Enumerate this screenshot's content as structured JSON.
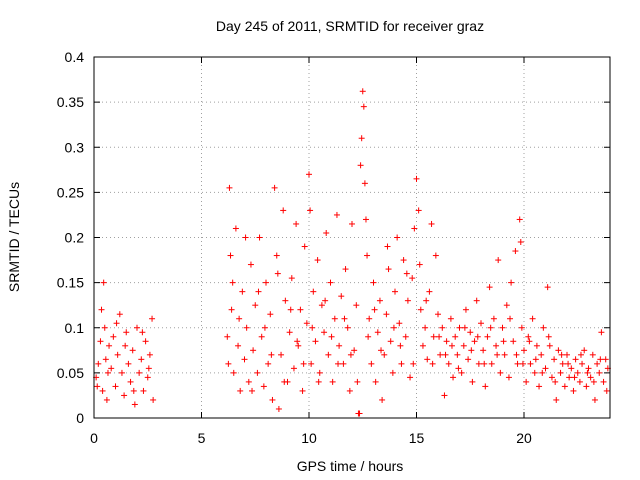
{
  "chart_data": {
    "type": "scatter",
    "title": "Day 245 of 2011, SRMTID for receiver graz",
    "xlabel": "GPS time / hours",
    "ylabel": "SRMTID / TECUs",
    "xlim": [
      0,
      24
    ],
    "ylim": [
      0,
      0.4
    ],
    "xticks": [
      0,
      5,
      10,
      15,
      20
    ],
    "xtick_labels": [
      "0",
      "5",
      "10",
      "15",
      "20"
    ],
    "yticks": [
      0,
      0.05,
      0.1,
      0.15,
      0.2,
      0.25,
      0.3,
      0.35,
      0.4
    ],
    "ytick_labels": [
      "0",
      "0.05",
      "0.1",
      "0.15",
      "0.2",
      "0.25",
      "0.3",
      "0.35",
      "0.4"
    ],
    "grid": true,
    "marker": "+",
    "color": "#ff0000",
    "series": [
      {
        "name": "SRMTID",
        "points": [
          [
            0.1,
            0.045
          ],
          [
            0.2,
            0.06
          ],
          [
            0.3,
            0.085
          ],
          [
            0.4,
            0.03
          ],
          [
            0.45,
            0.15
          ],
          [
            0.5,
            0.1
          ],
          [
            0.55,
            0.065
          ],
          [
            0.6,
            0.02
          ],
          [
            0.7,
            0.08
          ],
          [
            0.8,
            0.055
          ],
          [
            0.9,
            0.09
          ],
          [
            1.0,
            0.035
          ],
          [
            1.1,
            0.07
          ],
          [
            1.2,
            0.115
          ],
          [
            1.3,
            0.05
          ],
          [
            1.4,
            0.025
          ],
          [
            1.5,
            0.095
          ],
          [
            1.6,
            0.06
          ],
          [
            1.7,
            0.04
          ],
          [
            1.8,
            0.075
          ],
          [
            1.9,
            0.015
          ],
          [
            2.0,
            0.1
          ],
          [
            2.1,
            0.05
          ],
          [
            2.2,
            0.065
          ],
          [
            2.3,
            0.03
          ],
          [
            2.4,
            0.085
          ],
          [
            2.5,
            0.045
          ],
          [
            2.6,
            0.07
          ],
          [
            2.7,
            0.11
          ],
          [
            2.75,
            0.02
          ],
          [
            0.15,
            0.035
          ],
          [
            0.35,
            0.12
          ],
          [
            0.65,
            0.05
          ],
          [
            1.05,
            0.105
          ],
          [
            1.45,
            0.08
          ],
          [
            1.85,
            0.03
          ],
          [
            2.25,
            0.095
          ],
          [
            2.55,
            0.055
          ],
          [
            6.2,
            0.09
          ],
          [
            6.3,
            0.255
          ],
          [
            6.35,
            0.18
          ],
          [
            6.4,
            0.12
          ],
          [
            6.5,
            0.05
          ],
          [
            6.6,
            0.21
          ],
          [
            6.7,
            0.08
          ],
          [
            6.8,
            0.03
          ],
          [
            6.9,
            0.14
          ],
          [
            7.0,
            0.065
          ],
          [
            7.1,
            0.1
          ],
          [
            7.2,
            0.04
          ],
          [
            7.3,
            0.17
          ],
          [
            7.4,
            0.075
          ],
          [
            7.5,
            0.125
          ],
          [
            7.6,
            0.05
          ],
          [
            7.7,
            0.2
          ],
          [
            7.8,
            0.09
          ],
          [
            7.9,
            0.035
          ],
          [
            8.0,
            0.15
          ],
          [
            8.1,
            0.06
          ],
          [
            8.2,
            0.115
          ],
          [
            8.3,
            0.02
          ],
          [
            8.4,
            0.255
          ],
          [
            8.5,
            0.18
          ],
          [
            8.6,
            0.01
          ],
          [
            8.7,
            0.07
          ],
          [
            8.8,
            0.23
          ],
          [
            8.9,
            0.13
          ],
          [
            9.0,
            0.04
          ],
          [
            9.1,
            0.095
          ],
          [
            9.2,
            0.155
          ],
          [
            9.3,
            0.055
          ],
          [
            9.4,
            0.215
          ],
          [
            9.5,
            0.08
          ],
          [
            9.6,
            0.12
          ],
          [
            9.7,
            0.03
          ],
          [
            9.8,
            0.19
          ],
          [
            9.9,
            0.105
          ],
          [
            10.0,
            0.27
          ],
          [
            10.05,
            0.23
          ],
          [
            10.1,
            0.06
          ],
          [
            10.2,
            0.14
          ],
          [
            10.3,
            0.085
          ],
          [
            10.4,
            0.175
          ],
          [
            10.5,
            0.05
          ],
          [
            10.6,
            0.125
          ],
          [
            10.7,
            0.095
          ],
          [
            10.8,
            0.205
          ],
          [
            10.9,
            0.07
          ],
          [
            11.0,
            0.15
          ],
          [
            11.1,
            0.04
          ],
          [
            11.2,
            0.11
          ],
          [
            11.3,
            0.225
          ],
          [
            11.4,
            0.08
          ],
          [
            11.5,
            0.135
          ],
          [
            11.6,
            0.06
          ],
          [
            11.7,
            0.165
          ],
          [
            11.8,
            0.1
          ],
          [
            11.9,
            0.03
          ],
          [
            12.0,
            0.215
          ],
          [
            12.1,
            0.075
          ],
          [
            12.2,
            0.125
          ],
          [
            12.3,
            0.005
          ],
          [
            12.4,
            0.28
          ],
          [
            12.45,
            0.31
          ],
          [
            12.5,
            0.362
          ],
          [
            12.55,
            0.345
          ],
          [
            12.6,
            0.26
          ],
          [
            12.7,
            0.18
          ],
          [
            12.8,
            0.11
          ],
          [
            12.9,
            0.06
          ],
          [
            13.0,
            0.15
          ],
          [
            13.1,
            0.04
          ],
          [
            13.2,
            0.095
          ],
          [
            13.3,
            0.13
          ],
          [
            13.4,
            0.02
          ],
          [
            13.5,
            0.07
          ],
          [
            13.6,
            0.115
          ],
          [
            13.7,
            0.165
          ],
          [
            13.8,
            0.085
          ],
          [
            13.9,
            0.05
          ],
          [
            14.0,
            0.14
          ],
          [
            14.1,
            0.2
          ],
          [
            14.2,
            0.105
          ],
          [
            14.3,
            0.06
          ],
          [
            14.4,
            0.175
          ],
          [
            14.5,
            0.09
          ],
          [
            14.6,
            0.13
          ],
          [
            14.7,
            0.045
          ],
          [
            14.8,
            0.155
          ],
          [
            14.9,
            0.21
          ],
          [
            15.0,
            0.265
          ],
          [
            15.1,
            0.23
          ],
          [
            15.2,
            0.12
          ],
          [
            15.3,
            0.08
          ],
          [
            15.4,
            0.1
          ],
          [
            15.5,
            0.065
          ],
          [
            15.6,
            0.14
          ],
          [
            15.7,
            0.215
          ],
          [
            15.8,
            0.09
          ],
          [
            15.9,
            0.18
          ],
          [
            16.0,
            0.115
          ],
          [
            16.1,
            0.07
          ],
          [
            16.2,
            0.1
          ],
          [
            16.3,
            0.025
          ],
          [
            16.4,
            0.085
          ],
          [
            16.5,
            0.06
          ],
          [
            16.6,
            0.11
          ],
          [
            16.7,
            0.045
          ],
          [
            16.8,
            0.09
          ],
          [
            16.9,
            0.07
          ],
          [
            17.0,
            0.1
          ],
          [
            17.1,
            0.05
          ],
          [
            17.2,
            0.08
          ],
          [
            17.3,
            0.12
          ],
          [
            17.4,
            0.065
          ],
          [
            17.5,
            0.095
          ],
          [
            17.6,
            0.04
          ],
          [
            17.7,
            0.085
          ],
          [
            17.8,
            0.13
          ],
          [
            17.9,
            0.06
          ],
          [
            18.0,
            0.105
          ],
          [
            18.1,
            0.075
          ],
          [
            18.2,
            0.035
          ],
          [
            18.3,
            0.09
          ],
          [
            18.4,
            0.145
          ],
          [
            18.5,
            0.06
          ],
          [
            18.6,
            0.11
          ],
          [
            18.7,
            0.08
          ],
          [
            18.8,
            0.175
          ],
          [
            18.9,
            0.05
          ],
          [
            19.0,
            0.1
          ],
          [
            19.1,
            0.07
          ],
          [
            19.2,
            0.125
          ],
          [
            19.3,
            0.045
          ],
          [
            19.4,
            0.15
          ],
          [
            19.5,
            0.085
          ],
          [
            19.6,
            0.185
          ],
          [
            19.7,
            0.06
          ],
          [
            19.8,
            0.22
          ],
          [
            19.85,
            0.195
          ],
          [
            19.9,
            0.1
          ],
          [
            20.0,
            0.075
          ],
          [
            20.1,
            0.04
          ],
          [
            20.2,
            0.09
          ],
          [
            20.3,
            0.06
          ],
          [
            20.4,
            0.11
          ],
          [
            20.5,
            0.05
          ],
          [
            20.6,
            0.08
          ],
          [
            20.7,
            0.035
          ],
          [
            20.8,
            0.07
          ],
          [
            20.9,
            0.1
          ],
          [
            21.0,
            0.055
          ],
          [
            21.1,
            0.145
          ],
          [
            21.2,
            0.08
          ],
          [
            21.3,
            0.045
          ],
          [
            21.4,
            0.065
          ],
          [
            21.5,
            0.02
          ],
          [
            21.6,
            0.075
          ],
          [
            21.7,
            0.05
          ],
          [
            21.8,
            0.06
          ],
          [
            21.9,
            0.035
          ],
          [
            22.0,
            0.07
          ],
          [
            22.1,
            0.045
          ],
          [
            22.2,
            0.055
          ],
          [
            22.3,
            0.03
          ],
          [
            22.4,
            0.065
          ],
          [
            22.5,
            0.05
          ],
          [
            22.6,
            0.04
          ],
          [
            22.7,
            0.06
          ],
          [
            22.8,
            0.075
          ],
          [
            22.9,
            0.035
          ],
          [
            23.0,
            0.055
          ],
          [
            23.1,
            0.045
          ],
          [
            23.2,
            0.07
          ],
          [
            23.3,
            0.02
          ],
          [
            23.4,
            0.06
          ],
          [
            23.5,
            0.05
          ],
          [
            23.6,
            0.095
          ],
          [
            23.7,
            0.04
          ],
          [
            23.8,
            0.065
          ],
          [
            23.9,
            0.055
          ],
          [
            6.25,
            0.06
          ],
          [
            6.45,
            0.15
          ],
          [
            6.75,
            0.11
          ],
          [
            7.05,
            0.2
          ],
          [
            7.35,
            0.03
          ],
          [
            7.65,
            0.14
          ],
          [
            7.95,
            0.1
          ],
          [
            8.25,
            0.07
          ],
          [
            8.55,
            0.16
          ],
          [
            8.85,
            0.04
          ],
          [
            9.15,
            0.12
          ],
          [
            9.45,
            0.085
          ],
          [
            9.75,
            0.06
          ],
          [
            10.15,
            0.1
          ],
          [
            10.45,
            0.04
          ],
          [
            10.75,
            0.13
          ],
          [
            11.05,
            0.09
          ],
          [
            11.35,
            0.06
          ],
          [
            11.65,
            0.11
          ],
          [
            11.95,
            0.07
          ],
          [
            12.25,
            0.04
          ],
          [
            12.35,
            0.005
          ],
          [
            12.65,
            0.22
          ],
          [
            12.75,
            0.09
          ],
          [
            13.05,
            0.12
          ],
          [
            13.35,
            0.075
          ],
          [
            13.65,
            0.19
          ],
          [
            13.95,
            0.1
          ],
          [
            14.25,
            0.08
          ],
          [
            14.55,
            0.16
          ],
          [
            14.85,
            0.06
          ],
          [
            15.15,
            0.17
          ],
          [
            15.45,
            0.13
          ],
          [
            15.75,
            0.06
          ],
          [
            16.05,
            0.09
          ],
          [
            16.35,
            0.07
          ],
          [
            16.65,
            0.08
          ],
          [
            16.95,
            0.055
          ],
          [
            17.25,
            0.1
          ],
          [
            17.55,
            0.075
          ],
          [
            17.85,
            0.09
          ],
          [
            18.15,
            0.06
          ],
          [
            18.45,
            0.1
          ],
          [
            18.75,
            0.07
          ],
          [
            19.05,
            0.085
          ],
          [
            19.35,
            0.11
          ],
          [
            19.65,
            0.07
          ],
          [
            19.95,
            0.06
          ],
          [
            20.25,
            0.085
          ],
          [
            20.55,
            0.065
          ],
          [
            20.85,
            0.05
          ],
          [
            21.15,
            0.09
          ],
          [
            21.45,
            0.04
          ],
          [
            21.75,
            0.07
          ],
          [
            22.05,
            0.06
          ],
          [
            22.35,
            0.045
          ],
          [
            22.65,
            0.07
          ],
          [
            22.95,
            0.05
          ],
          [
            23.25,
            0.04
          ],
          [
            23.55,
            0.065
          ],
          [
            23.85,
            0.03
          ]
        ]
      }
    ]
  }
}
